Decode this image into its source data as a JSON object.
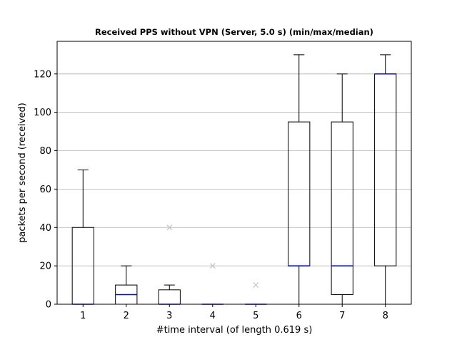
{
  "chart_data": {
    "type": "box",
    "title": "Received PPS without VPN (Server, 5.0 s) (min/max/median)",
    "xlabel": "#time interval (of length 0.619 s)",
    "ylabel": "packets per second (received)",
    "ylim": [
      0,
      137
    ],
    "yticks": [
      0,
      20,
      40,
      60,
      80,
      100,
      120
    ],
    "categories": [
      "1",
      "2",
      "3",
      "4",
      "5",
      "6",
      "7",
      "8"
    ],
    "grid": "horizontal",
    "colors": {
      "box": "#000000",
      "median": "#0000ff",
      "outlier": "#c8c8c8",
      "grid": "#b0b0b0"
    },
    "boxes": [
      {
        "label": "1",
        "min": 0,
        "q1": 0,
        "median": 0,
        "q3": 40,
        "max": 70,
        "outliers": []
      },
      {
        "label": "2",
        "min": 0,
        "q1": 0,
        "median": 5,
        "q3": 10,
        "max": 20,
        "outliers": []
      },
      {
        "label": "3",
        "min": 0,
        "q1": 0,
        "median": 0,
        "q3": 7.5,
        "max": 10,
        "outliers": [
          40
        ]
      },
      {
        "label": "4",
        "min": 0,
        "q1": 0,
        "median": 0,
        "q3": 0,
        "max": 0,
        "outliers": [
          20
        ]
      },
      {
        "label": "5",
        "min": 0,
        "q1": 0,
        "median": 0,
        "q3": 0,
        "max": 0,
        "outliers": [
          10
        ]
      },
      {
        "label": "6",
        "min": 0,
        "q1": 20,
        "median": 20,
        "q3": 95,
        "max": 130,
        "outliers": []
      },
      {
        "label": "7",
        "min": 0,
        "q1": 5,
        "median": 20,
        "q3": 95,
        "max": 120,
        "outliers": []
      },
      {
        "label": "8",
        "min": 0,
        "q1": 20,
        "median": 120,
        "q3": 120,
        "max": 130,
        "outliers": []
      }
    ]
  }
}
